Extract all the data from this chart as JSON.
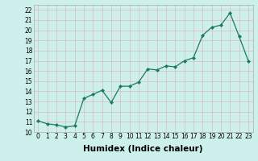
{
  "xlabel": "Humidex (Indice chaleur)",
  "x": [
    0,
    1,
    2,
    3,
    4,
    5,
    6,
    7,
    8,
    9,
    10,
    11,
    12,
    13,
    14,
    15,
    16,
    17,
    18,
    19,
    20,
    21,
    22,
    23
  ],
  "y": [
    11.1,
    10.8,
    10.7,
    10.5,
    10.6,
    13.3,
    13.7,
    14.1,
    12.9,
    14.5,
    14.5,
    14.9,
    16.2,
    16.1,
    16.5,
    16.4,
    17.0,
    17.3,
    19.5,
    20.3,
    20.5,
    21.7,
    19.4,
    17.0
  ],
  "line_color": "#1a7a5e",
  "marker_color": "#1a7a5e",
  "bg_color": "#cdf0ed",
  "grid_color": "#dbbcbc",
  "ylim": [
    10,
    22.5
  ],
  "yticks": [
    10,
    11,
    12,
    13,
    14,
    15,
    16,
    17,
    18,
    19,
    20,
    21,
    22
  ],
  "xticks": [
    0,
    1,
    2,
    3,
    4,
    5,
    6,
    7,
    8,
    9,
    10,
    11,
    12,
    13,
    14,
    15,
    16,
    17,
    18,
    19,
    20,
    21,
    22,
    23
  ],
  "tick_fontsize": 5.5,
  "label_fontsize": 7.5
}
